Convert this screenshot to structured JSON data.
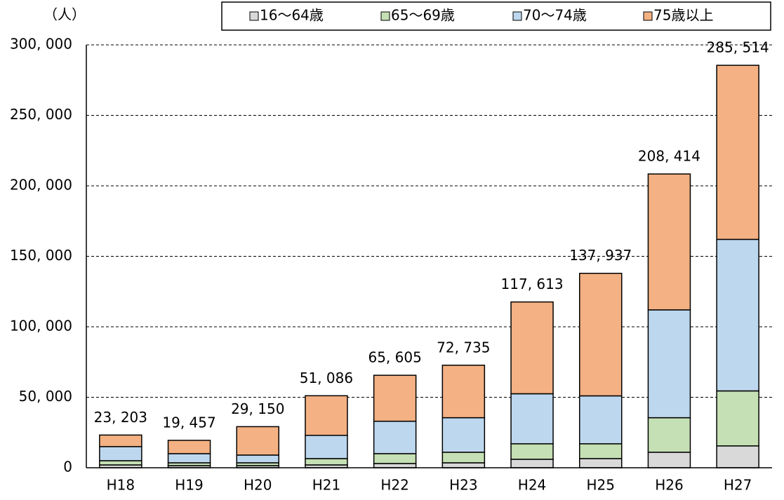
{
  "chart_data": {
    "type": "stacked_bar",
    "y_label": "（人）",
    "categories": [
      "H18",
      "H19",
      "H20",
      "H21",
      "H22",
      "H23",
      "H24",
      "H25",
      "H26",
      "H27"
    ],
    "series": [
      {
        "name": "16〜64歳",
        "color": "#d9d9d9",
        "values": [
          2000,
          1500,
          1500,
          2000,
          3000,
          3500,
          6000,
          6500,
          11000,
          15500
        ]
      },
      {
        "name": "65〜69歳",
        "color": "#c5e0b4",
        "values": [
          3000,
          2000,
          2000,
          4500,
          7000,
          7500,
          11000,
          10500,
          24500,
          39000
        ]
      },
      {
        "name": "70〜74歳",
        "color": "#bdd7ee",
        "values": [
          10000,
          6500,
          5500,
          16500,
          23000,
          24500,
          35500,
          34000,
          76500,
          107500
        ]
      },
      {
        "name": "75歳以上",
        "color": "#f4b183",
        "values": [
          8203,
          9457,
          20150,
          28086,
          32605,
          37235,
          65113,
          86937,
          96414,
          123514
        ]
      }
    ],
    "totals": {
      "values": [
        23203,
        19457,
        29150,
        51086,
        65605,
        72735,
        117613,
        137937,
        208414,
        285514
      ],
      "value_labels": [
        "23, 203",
        "19, 457",
        "29, 150",
        "51, 086",
        "65, 605",
        "72, 735",
        "117, 613",
        "137, 937",
        "208, 414",
        "285, 514"
      ]
    },
    "ylim": [
      0,
      300000
    ],
    "yticks": [
      0,
      {
        "value": 50000,
        "label": "50, 000"
      },
      {
        "value": 100000,
        "label": "100, 000"
      },
      {
        "value": 150000,
        "label": "150, 000"
      },
      {
        "value": 200000,
        "label": "200, 000"
      },
      {
        "value": 250000,
        "label": "250, 000"
      },
      {
        "value": 300000,
        "label": "300, 000"
      }
    ],
    "grid": true
  }
}
